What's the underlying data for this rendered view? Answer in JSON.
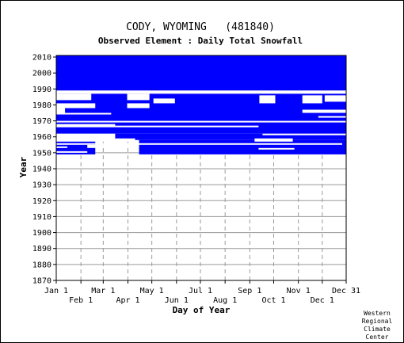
{
  "chart_data": {
    "type": "heatmap",
    "title": "CODY, WYOMING   (481840)",
    "subtitle": "Observed Element : Daily Total Snowfall",
    "xlabel": "Day of Year",
    "ylabel": "Year",
    "xlim": [
      1,
      365
    ],
    "ylim": [
      1870,
      2011
    ],
    "data_color": "#0000ff",
    "grid": true,
    "x_ticks_upper": [
      {
        "label": "Jan 1",
        "day": 1
      },
      {
        "label": "Mar 1",
        "day": 60
      },
      {
        "label": "May 1",
        "day": 121
      },
      {
        "label": "Jul 1",
        "day": 182
      },
      {
        "label": "Sep 1",
        "day": 244
      },
      {
        "label": "Nov 1",
        "day": 305
      },
      {
        "label": "Dec 31",
        "day": 365
      }
    ],
    "x_ticks_lower": [
      {
        "label": "Feb 1",
        "day": 32
      },
      {
        "label": "Apr 1",
        "day": 91
      },
      {
        "label": "Jun 1",
        "day": 152
      },
      {
        "label": "Aug 1",
        "day": 213
      },
      {
        "label": "Oct 1",
        "day": 274
      },
      {
        "label": "Dec 1",
        "day": 335
      }
    ],
    "y_ticks": [
      1870,
      1880,
      1890,
      1900,
      1910,
      1920,
      1930,
      1940,
      1950,
      1960,
      1970,
      1980,
      1990,
      2000,
      2010
    ],
    "coverage": [
      {
        "year_start": 1989,
        "year_end": 2010,
        "day_start": 1,
        "day_end": 365
      },
      {
        "year_start": 1962,
        "year_end": 1988,
        "day_start": 1,
        "day_end": 365
      },
      {
        "year_start": 1958,
        "year_end": 1961,
        "day_start": 1,
        "day_end": 365
      },
      {
        "year_start": 1949,
        "year_end": 1957,
        "day_start": 1,
        "day_end": 50
      },
      {
        "year_start": 1949,
        "year_end": 1957,
        "day_start": 105,
        "day_end": 365
      }
    ],
    "gaps": [
      {
        "year_start": 1987,
        "year_end": 1989,
        "day_start": 1,
        "day_end": 365
      },
      {
        "year_start": 1983,
        "year_end": 1987,
        "day_start": 1,
        "day_end": 45
      },
      {
        "year_start": 1983,
        "year_end": 1987,
        "day_start": 90,
        "day_end": 118
      },
      {
        "year_start": 1981,
        "year_end": 1984,
        "day_start": 123,
        "day_end": 150
      },
      {
        "year_start": 1981,
        "year_end": 1986,
        "day_start": 256,
        "day_end": 276
      },
      {
        "year_start": 1981,
        "year_end": 1986,
        "day_start": 310,
        "day_end": 335
      },
      {
        "year_start": 1982,
        "year_end": 1986,
        "day_start": 338,
        "day_end": 365
      },
      {
        "year_start": 1978,
        "year_end": 1981,
        "day_start": 1,
        "day_end": 50
      },
      {
        "year_start": 1978,
        "year_end": 1981,
        "day_start": 90,
        "day_end": 118
      },
      {
        "year_start": 1975,
        "year_end": 1978,
        "day_start": 1,
        "day_end": 12
      },
      {
        "year_start": 1974,
        "year_end": 1975,
        "day_start": 1,
        "day_end": 70
      },
      {
        "year_start": 1975,
        "year_end": 1977,
        "day_start": 310,
        "day_end": 365
      },
      {
        "year_start": 1972,
        "year_end": 1973,
        "day_start": 330,
        "day_end": 365
      },
      {
        "year_start": 1969,
        "year_end": 1970,
        "day_start": 1,
        "day_end": 365
      },
      {
        "year_start": 1966,
        "year_end": 1968,
        "day_start": 1,
        "day_end": 75
      },
      {
        "year_start": 1966,
        "year_end": 1967,
        "day_start": 75,
        "day_end": 255
      },
      {
        "year_start": 1961,
        "year_end": 1962,
        "day_start": 260,
        "day_end": 365
      },
      {
        "year_start": 1957,
        "year_end": 1962,
        "day_start": 1,
        "day_end": 75
      },
      {
        "year_start": 1957,
        "year_end": 1959,
        "day_start": 75,
        "day_end": 100
      },
      {
        "year_start": 1957,
        "year_end": 1959,
        "day_start": 250,
        "day_end": 298
      },
      {
        "year_start": 1955,
        "year_end": 1956,
        "day_start": 1,
        "day_end": 360
      },
      {
        "year_start": 1953,
        "year_end": 1954,
        "day_start": 1,
        "day_end": 15
      },
      {
        "year_start": 1953,
        "year_end": 1955,
        "day_start": 40,
        "day_end": 99
      },
      {
        "year_start": 1950,
        "year_end": 1951,
        "day_start": 1,
        "day_end": 40
      },
      {
        "year_start": 1952,
        "year_end": 1953,
        "day_start": 255,
        "day_end": 300
      }
    ]
  },
  "credit": {
    "line1": "Western",
    "line2": "Regional",
    "line3": "Climate",
    "line4": "Center"
  }
}
